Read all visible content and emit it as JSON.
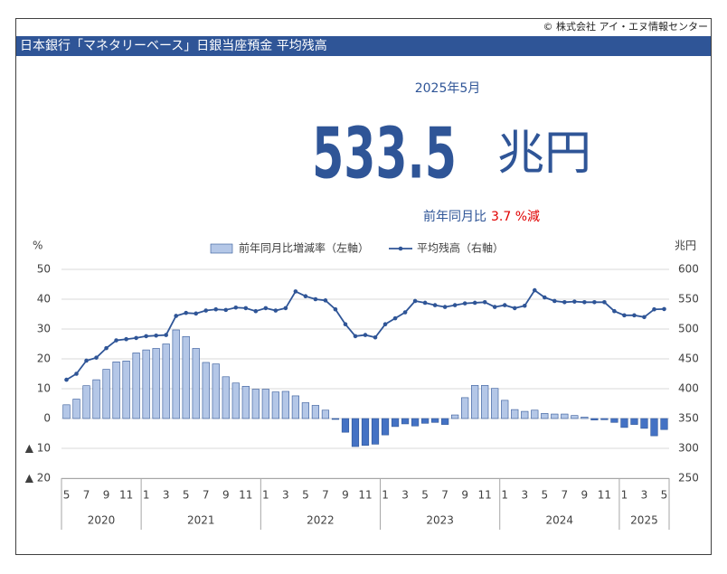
{
  "credit": "© 株式会社 アイ・エヌ情報センター",
  "header": {
    "title": "日本銀行「マネタリーベース」日銀当座預金 平均残高"
  },
  "summary": {
    "period": "2025年5月",
    "value": 533.5,
    "unit": "兆円",
    "change_text": "前年同月比",
    "change_value": "3.7 %減"
  },
  "chart_data": {
    "type": "bar",
    "y_unit": "%",
    "y2_unit": "兆円",
    "categories": [
      "5",
      null,
      "7",
      null,
      "9",
      null,
      "11",
      null,
      "1",
      null,
      "3",
      null,
      "5",
      null,
      "7",
      null,
      "9",
      null,
      "11",
      null,
      "1",
      null,
      "3",
      null,
      "5",
      null,
      "7",
      null,
      "9",
      null,
      "11",
      null,
      "1",
      null,
      "3",
      null,
      "5",
      null,
      "7",
      null,
      "9",
      null,
      "11",
      null,
      "1",
      null,
      "3",
      null,
      "5",
      null,
      "7",
      null,
      "9",
      null,
      "11",
      null,
      "1",
      null,
      "3",
      null,
      "5"
    ],
    "year_labels": [
      "2020",
      "2021",
      "2022",
      "2023",
      "2024",
      "2025"
    ],
    "series": [
      {
        "name": "前年同月比増減率（左軸）",
        "type": "bar",
        "color": "#b4c7e7",
        "negative_color": "#4472c4",
        "values": [
          4.6,
          6.5,
          11,
          13,
          16.5,
          19,
          19.3,
          22,
          23,
          23.5,
          25,
          29.7,
          27.5,
          23.5,
          18.8,
          18.3,
          14,
          11.9,
          10.8,
          9.8,
          9.8,
          8.9,
          9.1,
          7.6,
          5.3,
          4.4,
          2.8,
          -0.3,
          -4.6,
          -9.4,
          -9.0,
          -8.6,
          -5.5,
          -2.7,
          -1.8,
          -2.5,
          -1.6,
          -1.3,
          -2.0,
          1.2,
          7.0,
          11.1,
          11.1,
          10.1,
          6.1,
          3.0,
          2.4,
          2.8,
          1.7,
          1.5,
          1.5,
          1.0,
          0.5,
          -0.5,
          -0.4,
          -1.3,
          -3.0,
          -2.0,
          -3.3,
          -5.8,
          -3.7
        ]
      },
      {
        "name": "平均残高（右軸）",
        "type": "line",
        "axis": "y2",
        "color": "#2f5597",
        "values": [
          415,
          425,
          447,
          452,
          468,
          481,
          483,
          485,
          488,
          489,
          490,
          522,
          527,
          526,
          531,
          533,
          532,
          536,
          535,
          530,
          535,
          531,
          535,
          563,
          555,
          550,
          548,
          533,
          508,
          488,
          490,
          486,
          508,
          518,
          528,
          547,
          544,
          540,
          537,
          540,
          543,
          544,
          545,
          537,
          540,
          535,
          539,
          565,
          553,
          547,
          545,
          546,
          545,
          545,
          545,
          530,
          523,
          523,
          520,
          533,
          533.5
        ]
      }
    ],
    "ylim": [
      -20,
      50
    ],
    "yticks": [
      {
        "value": -20,
        "label": "▲ 20"
      },
      {
        "value": -10,
        "label": "▲ 10"
      },
      0,
      10,
      20,
      30,
      40,
      50
    ],
    "y2lim": [
      250,
      600
    ],
    "y2ticks": [
      250,
      300,
      350,
      400,
      450,
      500,
      550,
      600
    ],
    "grid": true,
    "legend": "top"
  }
}
